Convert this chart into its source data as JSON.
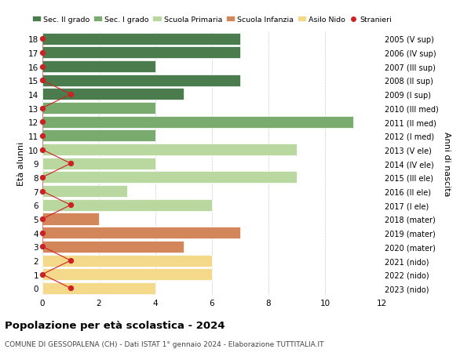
{
  "ages": [
    18,
    17,
    16,
    15,
    14,
    13,
    12,
    11,
    10,
    9,
    8,
    7,
    6,
    5,
    4,
    3,
    2,
    1,
    0
  ],
  "right_labels": [
    "2005 (V sup)",
    "2006 (IV sup)",
    "2007 (III sup)",
    "2008 (II sup)",
    "2009 (I sup)",
    "2010 (III med)",
    "2011 (II med)",
    "2012 (I med)",
    "2013 (V ele)",
    "2014 (IV ele)",
    "2015 (III ele)",
    "2016 (II ele)",
    "2017 (I ele)",
    "2018 (mater)",
    "2019 (mater)",
    "2020 (mater)",
    "2021 (nido)",
    "2022 (nido)",
    "2023 (nido)"
  ],
  "bar_values": [
    7,
    7,
    4,
    7,
    5,
    4,
    11,
    4,
    9,
    4,
    9,
    3,
    6,
    2,
    7,
    5,
    6,
    6,
    4
  ],
  "bar_colors": [
    "#4a7c4e",
    "#4a7c4e",
    "#4a7c4e",
    "#4a7c4e",
    "#4a7c4e",
    "#7aab6e",
    "#7aab6e",
    "#7aab6e",
    "#b8d8a0",
    "#b8d8a0",
    "#b8d8a0",
    "#b8d8a0",
    "#b8d8a0",
    "#d2865a",
    "#d2865a",
    "#d2865a",
    "#f5d98b",
    "#f5d98b",
    "#f5d98b"
  ],
  "stranieri_x": [
    0,
    0,
    0,
    0,
    1,
    0,
    0,
    0,
    0,
    1,
    0,
    0,
    1,
    0,
    0,
    0,
    1,
    0,
    1
  ],
  "legend_labels": [
    "Sec. II grado",
    "Sec. I grado",
    "Scuola Primaria",
    "Scuola Infanzia",
    "Asilo Nido",
    "Stranieri"
  ],
  "legend_colors": [
    "#4a7c4e",
    "#7aab6e",
    "#b8d8a0",
    "#d2865a",
    "#f5d98b",
    "#cc2222"
  ],
  "title": "Popolazione per età scolastica - 2024",
  "subtitle": "COMUNE DI GESSOPALENA (CH) - Dati ISTAT 1° gennaio 2024 - Elaborazione TUTTITALIA.IT",
  "ylabel_left": "Età alunni",
  "ylabel_right": "Anni di nascita",
  "xlim": [
    0,
    12
  ],
  "ylim": [
    -0.5,
    18.5
  ],
  "xticks": [
    0,
    2,
    4,
    6,
    8,
    10,
    12
  ],
  "background_color": "#ffffff",
  "stranieri_color": "#cc2222",
  "grid_color": "#cccccc",
  "bar_height": 0.85
}
